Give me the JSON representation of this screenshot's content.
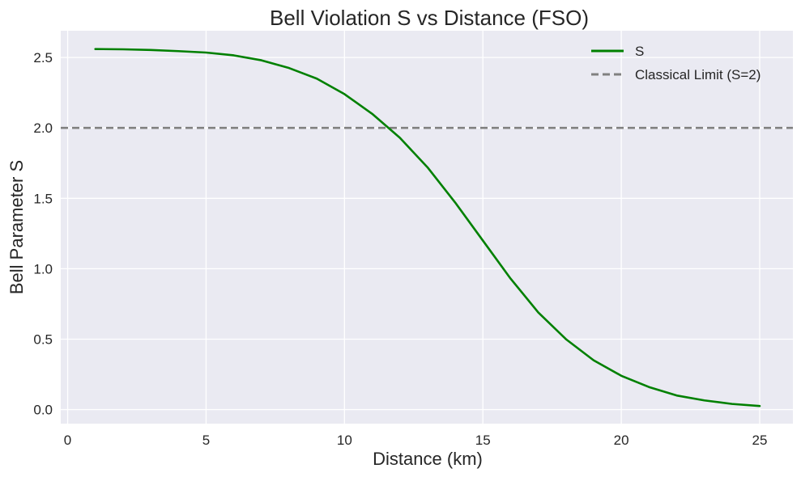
{
  "chart_data": {
    "type": "line",
    "title": "Bell Violation S vs Distance (FSO)",
    "xlabel": "Distance (km)",
    "ylabel": "Bell Parameter S",
    "xlim": [
      -0.25,
      26.2
    ],
    "ylim": [
      -0.1,
      2.69
    ],
    "xticks": [
      0,
      5,
      10,
      15,
      20,
      25
    ],
    "yticks": [
      0.0,
      0.5,
      1.0,
      1.5,
      2.0,
      2.5
    ],
    "xtick_labels": [
      "0",
      "5",
      "10",
      "15",
      "20",
      "25"
    ],
    "ytick_labels": [
      "0.0",
      "0.5",
      "1.0",
      "1.5",
      "2.0",
      "2.5"
    ],
    "grid": true,
    "legend_position": "top-right",
    "background_color": "#EAEAF2",
    "series": [
      {
        "name": "S",
        "color": "#008000",
        "style": "solid",
        "x": [
          1,
          2,
          3,
          4,
          5,
          6,
          7,
          8,
          9,
          10,
          11,
          12,
          13,
          14,
          15,
          16,
          17,
          18,
          19,
          20,
          21,
          22,
          23,
          24,
          25
        ],
        "y": [
          2.56,
          2.558,
          2.553,
          2.545,
          2.535,
          2.515,
          2.48,
          2.425,
          2.35,
          2.24,
          2.1,
          1.93,
          1.72,
          1.47,
          1.2,
          0.93,
          0.69,
          0.5,
          0.35,
          0.24,
          0.16,
          0.1,
          0.065,
          0.04,
          0.025
        ]
      },
      {
        "name": "Classical Limit (S=2)",
        "color": "#808080",
        "style": "dashed",
        "y_constant": 2.0
      }
    ]
  }
}
